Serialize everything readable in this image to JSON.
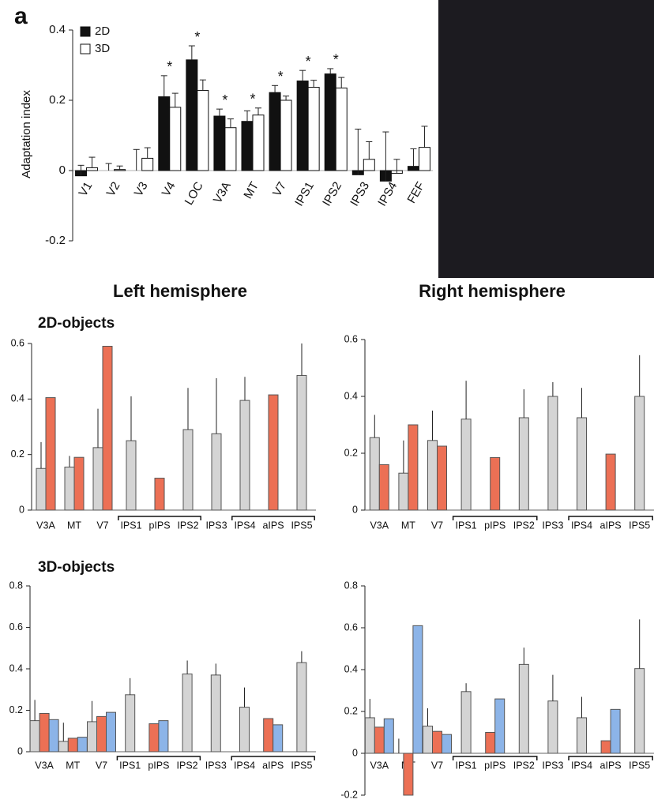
{
  "columns": [
    "Left hemisphere",
    "Right hemisphere"
  ],
  "rows": [
    "2D-objects",
    "3D-objects"
  ],
  "chart_data": [
    {
      "type": "bar",
      "label": "a",
      "ylabel": "Adaptation index",
      "categories": [
        "V1",
        "V2",
        "V3",
        "V4",
        "LOC",
        "V3A",
        "MT",
        "V7",
        "IPS1",
        "IPS2",
        "IPS3",
        "IPS4",
        "FEF"
      ],
      "series": [
        {
          "name": "2D",
          "color": "#111111",
          "values": [
            -0.015,
            0,
            0,
            0.21,
            0.315,
            0.155,
            0.14,
            0.222,
            0.255,
            0.275,
            -0.012,
            -0.03,
            0.012
          ],
          "errors": [
            0.03,
            0.02,
            0.06,
            0.06,
            0.04,
            0.02,
            0.03,
            0.02,
            0.03,
            0.015,
            0.13,
            0.14,
            0.05
          ]
        },
        {
          "name": "3D",
          "color": "#ffffff",
          "values": [
            0.008,
            0.003,
            0.035,
            0.18,
            0.228,
            0.122,
            0.158,
            0.2,
            0.237,
            0.235,
            0.032,
            -0.008,
            0.066
          ],
          "errors": [
            0.03,
            0.01,
            0.03,
            0.04,
            0.03,
            0.025,
            0.02,
            0.012,
            0.02,
            0.03,
            0.05,
            0.04,
            0.06
          ]
        }
      ],
      "annotations": [
        null,
        null,
        null,
        "*",
        "*",
        "*",
        "*",
        "*",
        "*",
        "*",
        null,
        null,
        null
      ],
      "ylim": [
        -0.2,
        0.4
      ],
      "yticks": [
        -0.2,
        0,
        0.2,
        0.4
      ],
      "grid": false
    },
    {
      "type": "bar",
      "categories": [
        "V3A",
        "MT",
        "V7",
        "IPS1",
        "pIPS",
        "IPS2",
        "IPS3",
        "IPS4",
        "aIPS",
        "IPS5"
      ],
      "series": [
        {
          "color": "#d4d4d4",
          "values": [
            0.15,
            0.155,
            0.225,
            0.25,
            null,
            0.29,
            0.275,
            0.395,
            null,
            0.485
          ],
          "errors": [
            0.095,
            0.04,
            0.14,
            0.16,
            null,
            0.15,
            0.2,
            0.085,
            null,
            0.115
          ]
        },
        {
          "color": "#ec7055",
          "values": [
            0.405,
            0.19,
            0.59,
            null,
            0.115,
            null,
            null,
            null,
            0.415,
            null
          ]
        }
      ],
      "ylim": [
        0,
        0.6
      ],
      "yticks": [
        0,
        0.2,
        0.4,
        0.6
      ],
      "grid": false
    },
    {
      "type": "bar",
      "categories": [
        "V3A",
        "MT",
        "V7",
        "IPS1",
        "pIPS",
        "IPS2",
        "IPS3",
        "IPS4",
        "aIPS",
        "IPS5"
      ],
      "series": [
        {
          "color": "#d4d4d4",
          "values": [
            0.255,
            0.13,
            0.245,
            0.32,
            null,
            0.325,
            0.4,
            0.325,
            null,
            0.4
          ],
          "errors": [
            0.08,
            0.115,
            0.105,
            0.135,
            null,
            0.1,
            0.05,
            0.105,
            null,
            0.145
          ]
        },
        {
          "color": "#ec7055",
          "values": [
            0.16,
            0.3,
            0.225,
            null,
            0.185,
            null,
            null,
            null,
            0.197,
            null
          ]
        }
      ],
      "ylim": [
        0,
        0.6
      ],
      "yticks": [
        0,
        0.2,
        0.4,
        0.6
      ],
      "grid": false
    },
    {
      "type": "bar",
      "categories": [
        "V3A",
        "MT",
        "V7",
        "IPS1",
        "pIPS",
        "IPS2",
        "IPS3",
        "IPS4",
        "aIPS",
        "IPS5"
      ],
      "series": [
        {
          "color": "#d4d4d4",
          "values": [
            0.15,
            0.05,
            0.145,
            0.275,
            null,
            0.375,
            0.37,
            0.215,
            null,
            0.43
          ],
          "errors": [
            0.1,
            0.09,
            0.1,
            0.08,
            null,
            0.065,
            0.055,
            0.095,
            null,
            0.055
          ]
        },
        {
          "color": "#ec7055",
          "values": [
            0.185,
            0.065,
            0.17,
            null,
            0.135,
            null,
            null,
            null,
            0.16,
            null
          ]
        },
        {
          "color": "#8cb4e8",
          "values": [
            0.155,
            0.07,
            0.19,
            null,
            0.15,
            null,
            null,
            null,
            0.13,
            null
          ]
        }
      ],
      "ylim": [
        0,
        0.8
      ],
      "yticks": [
        0,
        0.2,
        0.4,
        0.6,
        0.8
      ],
      "grid": false
    },
    {
      "type": "bar",
      "categories": [
        "V3A",
        "MT",
        "V7",
        "IPS1",
        "pIPS",
        "IPS2",
        "IPS3",
        "IPS4",
        "aIPS",
        "IPS5"
      ],
      "series": [
        {
          "color": "#d4d4d4",
          "values": [
            0.17,
            0,
            0.13,
            0.295,
            null,
            0.425,
            0.25,
            0.17,
            null,
            0.405
          ],
          "errors": [
            0.09,
            0.07,
            0.085,
            0.04,
            null,
            0.08,
            0.125,
            0.1,
            null,
            0.235
          ]
        },
        {
          "color": "#ec7055",
          "values": [
            0.125,
            -0.2,
            0.105,
            null,
            0.1,
            null,
            null,
            null,
            0.06,
            null
          ]
        },
        {
          "color": "#8cb4e8",
          "values": [
            0.165,
            0.61,
            0.09,
            null,
            0.26,
            null,
            null,
            null,
            0.21,
            null
          ]
        }
      ],
      "ylim": [
        -0.2,
        0.8
      ],
      "yticks": [
        -0.2,
        0,
        0.2,
        0.4,
        0.6,
        0.8
      ],
      "grid": false
    }
  ]
}
